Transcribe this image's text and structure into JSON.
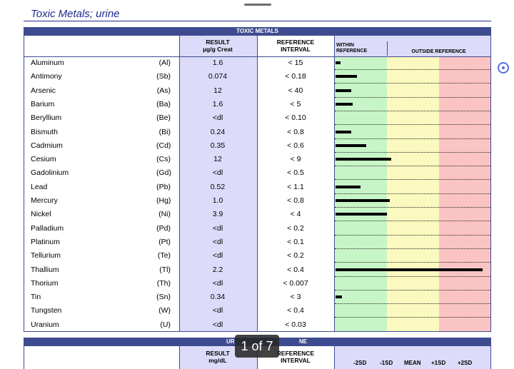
{
  "document_title": "Toxic Metals; urine",
  "section1": {
    "band_title": "TOXIC METALS",
    "result_header": [
      "RESULT",
      "µg/g Creat"
    ],
    "reference_header": [
      "REFERENCE",
      "INTERVAL"
    ],
    "within_header": [
      "WITHIN",
      "REFERENCE"
    ],
    "outside_header": "OUTSIDE REFERENCE",
    "zone_colors": {
      "green": "#c8f5c8",
      "yellow": "#fafac0",
      "red": "#fbc4c4",
      "result_col": "#dcdcfa",
      "band": "#3e4b8f"
    },
    "rows": [
      {
        "name": "Aluminum",
        "symbol": "(Al)",
        "result": "1.6",
        "reference": "< 15",
        "bar_fraction": 0.03
      },
      {
        "name": "Antimony",
        "symbol": "(Sb)",
        "result": "0.074",
        "reference": "< 0.18",
        "bar_fraction": 0.14
      },
      {
        "name": "Arsenic",
        "symbol": "(As)",
        "result": "12",
        "reference": "< 40",
        "bar_fraction": 0.1
      },
      {
        "name": "Barium",
        "symbol": "(Ba)",
        "result": "1.6",
        "reference": "< 5",
        "bar_fraction": 0.11
      },
      {
        "name": "Beryllium",
        "symbol": "(Be)",
        "result": "<dl",
        "reference": "< 0.10",
        "bar_fraction": 0
      },
      {
        "name": "Bismuth",
        "symbol": "(Bi)",
        "result": "0.24",
        "reference": "< 0.8",
        "bar_fraction": 0.1
      },
      {
        "name": "Cadmium",
        "symbol": "(Cd)",
        "result": "0.35",
        "reference": "< 0.6",
        "bar_fraction": 0.2
      },
      {
        "name": "Cesium",
        "symbol": "(Cs)",
        "result": "12",
        "reference": "< 9",
        "bar_fraction": 0.36
      },
      {
        "name": "Gadolinium",
        "symbol": "(Gd)",
        "result": "<dl",
        "reference": "< 0.5",
        "bar_fraction": 0
      },
      {
        "name": "Lead",
        "symbol": "(Pb)",
        "result": "0.52",
        "reference": "< 1.1",
        "bar_fraction": 0.16
      },
      {
        "name": "Mercury",
        "symbol": "(Hg)",
        "result": "1.0",
        "reference": "< 0.8",
        "bar_fraction": 0.35
      },
      {
        "name": "Nickel",
        "symbol": "(Ni)",
        "result": "3.9",
        "reference": "< 4",
        "bar_fraction": 0.33
      },
      {
        "name": "Palladium",
        "symbol": "(Pd)",
        "result": "<dl",
        "reference": "< 0.2",
        "bar_fraction": 0
      },
      {
        "name": "Platinum",
        "symbol": "(Pt)",
        "result": "<dl",
        "reference": "< 0.1",
        "bar_fraction": 0
      },
      {
        "name": "Tellurium",
        "symbol": "(Te)",
        "result": "<dl",
        "reference": "< 0.2",
        "bar_fraction": 0
      },
      {
        "name": "Thallium",
        "symbol": "(Tl)",
        "result": "2.2",
        "reference": "< 0.4",
        "bar_fraction": 0.95
      },
      {
        "name": "Thorium",
        "symbol": "(Th)",
        "result": "<dl",
        "reference": "< 0.007",
        "bar_fraction": 0
      },
      {
        "name": "Tin",
        "symbol": "(Sn)",
        "result": "0.34",
        "reference": "< 3",
        "bar_fraction": 0.04
      },
      {
        "name": "Tungsten",
        "symbol": "(W)",
        "result": "<dl",
        "reference": "< 0.4",
        "bar_fraction": 0
      },
      {
        "name": "Uranium",
        "symbol": "(U)",
        "result": "<dl",
        "reference": "< 0.03",
        "bar_fraction": 0
      }
    ]
  },
  "section2": {
    "band_title_left": "UR",
    "band_title_right": "NE",
    "result_header": [
      "RESULT",
      "mg/dL"
    ],
    "reference_header": [
      "REFERENCE",
      "INTERVAL"
    ],
    "scale_labels": [
      "-2SD",
      "-1SD",
      "MEAN",
      "+1SD",
      "+2SD"
    ]
  },
  "page_indicator": "1 of 7"
}
